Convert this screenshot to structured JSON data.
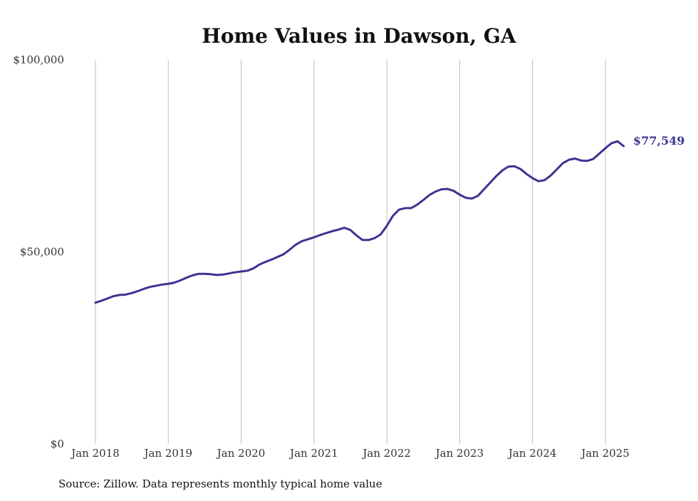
{
  "chart_data": {
    "type": "line",
    "title": "Home Values in Dawson, GA",
    "xlabel": "",
    "ylabel": "",
    "ylim": [
      0,
      100000
    ],
    "y_ticks": [
      {
        "value": 0,
        "label": "$0"
      },
      {
        "value": 50000,
        "label": "$50,000"
      },
      {
        "value": 100000,
        "label": "$100,000"
      }
    ],
    "x_ticks": [
      {
        "value": "2018-01",
        "label": "Jan 2018"
      },
      {
        "value": "2019-01",
        "label": "Jan 2019"
      },
      {
        "value": "2020-01",
        "label": "Jan 2020"
      },
      {
        "value": "2021-01",
        "label": "Jan 2021"
      },
      {
        "value": "2022-01",
        "label": "Jan 2022"
      },
      {
        "value": "2023-01",
        "label": "Jan 2023"
      },
      {
        "value": "2024-01",
        "label": "Jan 2024"
      },
      {
        "value": "2025-01",
        "label": "Jan 2025"
      }
    ],
    "xlim": [
      "2018-01",
      "2025-04"
    ],
    "grid": {
      "vertical": true,
      "horizontal": false
    },
    "line_color": "#3b3491",
    "end_label": "$77,549",
    "source": "Source: Zillow. Data represents monthly typical home value",
    "series": [
      {
        "x": [
          "2018-01",
          "2018-02",
          "2018-03",
          "2018-04",
          "2018-05",
          "2018-06",
          "2018-07",
          "2018-08",
          "2018-09",
          "2018-10",
          "2018-11",
          "2018-12",
          "2019-01",
          "2019-02",
          "2019-03",
          "2019-04",
          "2019-05",
          "2019-06",
          "2019-07",
          "2019-08",
          "2019-09",
          "2019-10",
          "2019-11",
          "2019-12",
          "2020-01",
          "2020-02",
          "2020-03",
          "2020-04",
          "2020-05",
          "2020-06",
          "2020-07",
          "2020-08",
          "2020-09",
          "2020-10",
          "2020-11",
          "2020-12",
          "2021-01",
          "2021-02",
          "2021-03",
          "2021-04",
          "2021-05",
          "2021-06",
          "2021-07",
          "2021-08",
          "2021-09",
          "2021-10",
          "2021-11",
          "2021-12",
          "2022-01",
          "2022-02",
          "2022-03",
          "2022-04",
          "2022-05",
          "2022-06",
          "2022-07",
          "2022-08",
          "2022-09",
          "2022-10",
          "2022-11",
          "2022-12",
          "2023-01",
          "2023-02",
          "2023-03",
          "2023-04",
          "2023-05",
          "2023-06",
          "2023-07",
          "2023-08",
          "2023-09",
          "2023-10",
          "2023-11",
          "2023-12",
          "2024-01",
          "2024-02",
          "2024-03",
          "2024-04",
          "2024-05",
          "2024-06",
          "2024-07",
          "2024-08",
          "2024-09",
          "2024-10",
          "2024-11",
          "2024-12",
          "2025-01",
          "2025-02",
          "2025-03",
          "2025-04"
        ],
        "values": [
          36800,
          37300,
          37900,
          38500,
          38800,
          38900,
          39300,
          39800,
          40400,
          40900,
          41200,
          41500,
          41700,
          42000,
          42600,
          43300,
          43900,
          44300,
          44300,
          44200,
          44000,
          44100,
          44400,
          44700,
          44900,
          45100,
          45700,
          46700,
          47400,
          48000,
          48700,
          49400,
          50600,
          51900,
          52800,
          53300,
          53800,
          54400,
          54900,
          55400,
          55800,
          56300,
          55700,
          54300,
          53100,
          53100,
          53600,
          54600,
          56800,
          59400,
          61000,
          61400,
          61400,
          62300,
          63500,
          64800,
          65700,
          66300,
          66400,
          65900,
          64900,
          64100,
          63900,
          64600,
          66300,
          68000,
          69700,
          71200,
          72200,
          72300,
          71600,
          70300,
          69200,
          68400,
          68700,
          69900,
          71500,
          73100,
          74000,
          74300,
          73800,
          73700,
          74200,
          75600,
          77000,
          78300,
          78800,
          77549
        ]
      }
    ]
  }
}
